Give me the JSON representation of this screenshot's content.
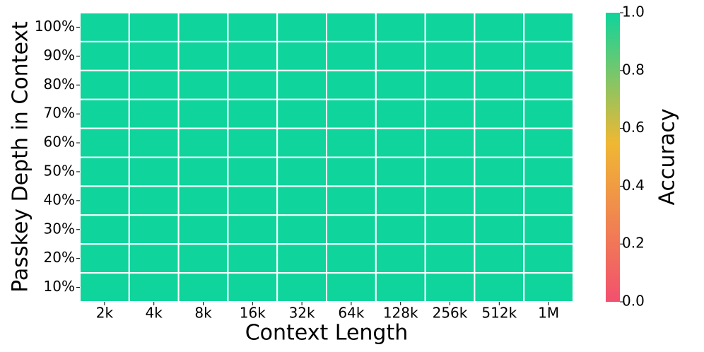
{
  "chart_data": {
    "type": "heatmap",
    "x_label": "Context Length",
    "y_label": "Passkey Depth in Context",
    "categories": [
      "2k",
      "4k",
      "8k",
      "16k",
      "32k",
      "64k",
      "128k",
      "256k",
      "512k",
      "1M"
    ],
    "y_categories": [
      "100%",
      "90%",
      "80%",
      "70%",
      "60%",
      "50%",
      "40%",
      "30%",
      "20%",
      "10%"
    ],
    "values": [
      [
        1,
        1,
        1,
        1,
        1,
        1,
        1,
        1,
        1,
        1
      ],
      [
        1,
        1,
        1,
        1,
        1,
        1,
        1,
        1,
        1,
        1
      ],
      [
        1,
        1,
        1,
        1,
        1,
        1,
        1,
        1,
        1,
        1
      ],
      [
        1,
        1,
        1,
        1,
        1,
        1,
        1,
        1,
        1,
        1
      ],
      [
        1,
        1,
        1,
        1,
        1,
        1,
        1,
        1,
        1,
        1
      ],
      [
        1,
        1,
        1,
        1,
        1,
        1,
        1,
        1,
        1,
        1
      ],
      [
        1,
        1,
        1,
        1,
        1,
        1,
        1,
        1,
        1,
        1
      ],
      [
        1,
        1,
        1,
        1,
        1,
        1,
        1,
        1,
        1,
        1
      ],
      [
        1,
        1,
        1,
        1,
        1,
        1,
        1,
        1,
        1,
        1
      ],
      [
        1,
        1,
        1,
        1,
        1,
        1,
        1,
        1,
        1,
        1
      ]
    ],
    "colormap": [
      {
        "value": 0,
        "color": "#f2506e"
      },
      {
        "value": 0.55,
        "color": "#efb833"
      },
      {
        "value": 1,
        "color": "#0fd49c"
      }
    ],
    "colorbar_label": "Accuracy",
    "clim": [
      0,
      1
    ],
    "cticks": [
      {
        "value": 0,
        "label": "0.0"
      },
      0.2,
      0.4,
      0.6,
      0.8,
      {
        "value": 1,
        "label": "1.0"
      }
    ]
  }
}
